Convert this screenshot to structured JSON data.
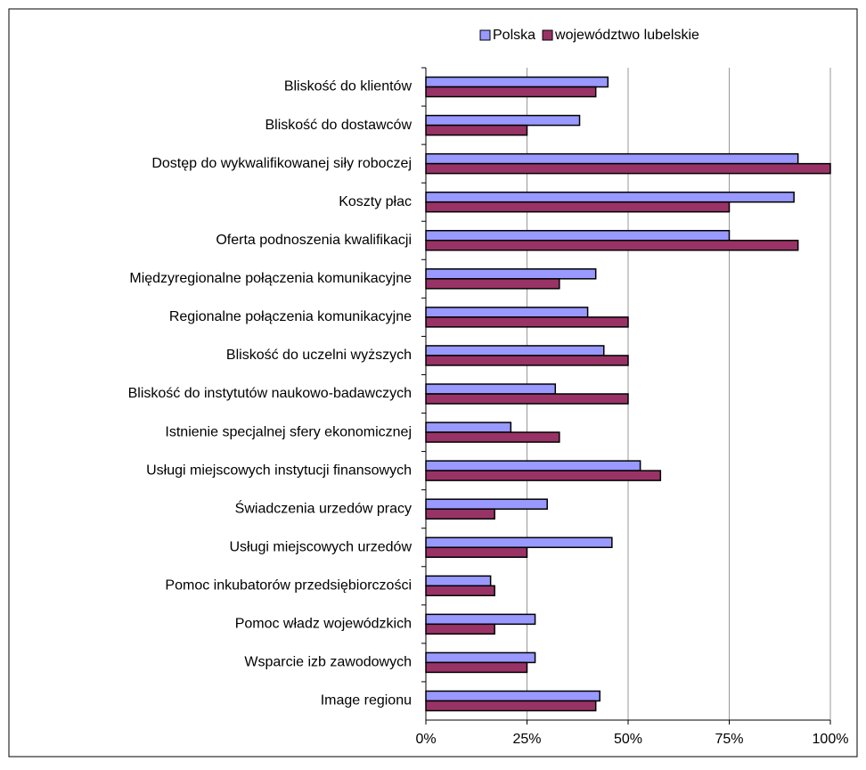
{
  "chart_data": {
    "type": "bar",
    "orientation": "horizontal",
    "categories": [
      "Bliskość do klientów",
      "Bliskość do dostawców",
      "Dostęp do wykwalifikowanej siły roboczej",
      "Koszty płac",
      "Oferta podnoszenia kwalifikacji",
      "Międzyregionalne połączenia komunikacyjne",
      "Regionalne połączenia komunikacyjne",
      "Bliskość do uczelni wyższych",
      "Bliskość do instytutów naukowo-badawczych",
      "Istnienie specjalnej sfery ekonomicznej",
      "Usługi miejscowych instytucji finansowych",
      "Świadczenia urzedów pracy",
      "Usługi miejscowych urzedów",
      "Pomoc inkubatorów przedsiębiorczości",
      "Pomoc władz wojewódzkich",
      "Wsparcie izb zawodowych",
      "Image regionu"
    ],
    "series": [
      {
        "name": "Polska",
        "color": "#9999ff",
        "values": [
          45,
          38,
          92,
          91,
          75,
          42,
          40,
          44,
          32,
          21,
          53,
          30,
          46,
          16,
          27,
          27,
          43
        ]
      },
      {
        "name": "województwo lubelskie",
        "color": "#993366",
        "values": [
          42,
          25,
          100,
          75,
          92,
          33,
          50,
          50,
          50,
          33,
          58,
          17,
          25,
          17,
          17,
          25,
          42
        ]
      }
    ],
    "xlim": [
      0,
      100
    ],
    "xticks": [
      {
        "value": 0,
        "label": "0%"
      },
      {
        "value": 25,
        "label": "25%"
      },
      {
        "value": 50,
        "label": "50%"
      },
      {
        "value": 75,
        "label": "75%"
      },
      {
        "value": 100,
        "label": "100%"
      }
    ],
    "grid": true,
    "legend": "top"
  }
}
